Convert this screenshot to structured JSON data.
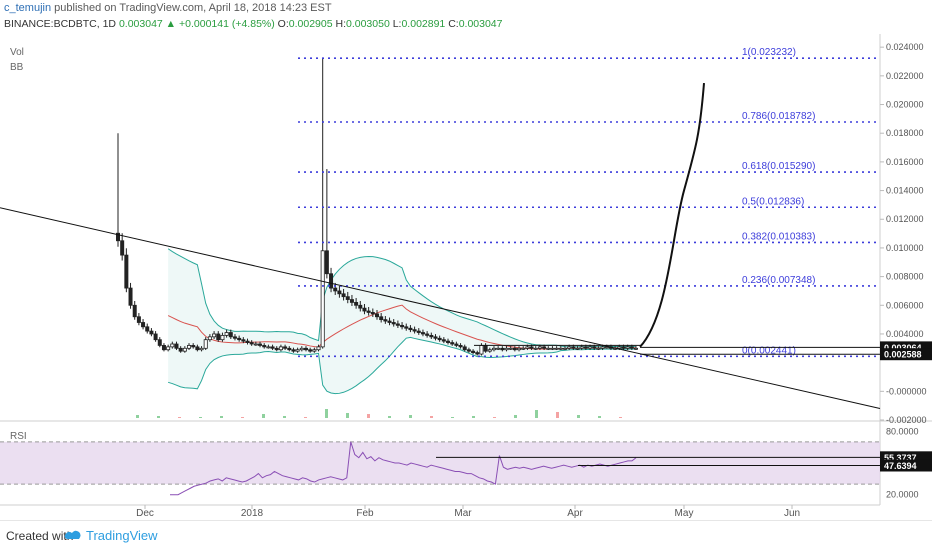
{
  "header": {
    "author": "c_temujin",
    "published_text": "published on TradingView.com, April 18, 2018 14:23 EST",
    "symbol": "BINANCE:BCDBTC, 1D",
    "last": "0.003047",
    "change_arrow": "▲",
    "change": "+0.000141 (+4.85%)",
    "o_label": "O:",
    "o_value": "0.002905",
    "h_label": "H:",
    "h_value": "0.003050",
    "l_label": "L:",
    "l_value": "0.002891",
    "c_label": "C:",
    "c_value": "0.003047"
  },
  "indicators": {
    "vol": "Vol",
    "bb": "BB",
    "rsi": "RSI"
  },
  "footer": {
    "created_with": "Created with",
    "brand": "TradingView",
    "brand_color": "#2e9ee0"
  },
  "chart_data": {
    "type": "candlestick",
    "symbol": "BINANCE:BCDBTC",
    "timeframe": "1D",
    "x_labels": [
      "Dec",
      "2018",
      "Feb",
      "Mar",
      "Apr",
      "May",
      "Jun"
    ],
    "price_axis": {
      "ticks": [
        "0.024000",
        "0.022000",
        "0.020000",
        "0.018000",
        "0.016000",
        "0.014000",
        "0.012000",
        "0.010000",
        "0.008000",
        "0.006000",
        "0.004000",
        "0.003047",
        "-0.000000",
        "-0.002000"
      ],
      "ylim": [
        -0.002,
        0.0245
      ],
      "highlight_labels": [
        {
          "value": 0.003064,
          "text": "0.003064"
        },
        {
          "value": 0.002588,
          "text": "0.002588"
        }
      ]
    },
    "fibonacci_levels": [
      {
        "ratio": "1",
        "price": 0.023232,
        "label": "1(0.023232)"
      },
      {
        "ratio": "0.786",
        "price": 0.018782,
        "label": "0.786(0.018782)"
      },
      {
        "ratio": "0.618",
        "price": 0.01529,
        "label": "0.618(0.015290)"
      },
      {
        "ratio": "0.5",
        "price": 0.012836,
        "label": "0.5(0.012836)"
      },
      {
        "ratio": "0.382",
        "price": 0.010383,
        "label": "0.382(0.010383)"
      },
      {
        "ratio": "0.236",
        "price": 0.007348,
        "label": "0.236(0.007348)"
      },
      {
        "ratio": "0",
        "price": 0.002441,
        "label": "0(0.002441)"
      }
    ],
    "candles_close": [
      0.0105,
      0.0095,
      0.0072,
      0.006,
      0.0052,
      0.0048,
      0.0045,
      0.0042,
      0.004,
      0.0036,
      0.0032,
      0.0029,
      0.0031,
      0.0033,
      0.003,
      0.0028,
      0.003,
      0.0032,
      0.0031,
      0.0029,
      0.003,
      0.0036,
      0.0038,
      0.004,
      0.0036,
      0.0039,
      0.0041,
      0.0038,
      0.0037,
      0.0036,
      0.0035,
      0.0034,
      0.0033,
      0.0033,
      0.0032,
      0.0031,
      0.0031,
      0.003,
      0.0029,
      0.0031,
      0.003,
      0.0029,
      0.0028,
      0.0029,
      0.003,
      0.0029,
      0.0028,
      0.0029,
      0.0031,
      0.0098,
      0.0082,
      0.0072,
      0.007,
      0.0068,
      0.0066,
      0.0064,
      0.0062,
      0.006,
      0.0058,
      0.0056,
      0.0055,
      0.0054,
      0.0052,
      0.005,
      0.0049,
      0.0048,
      0.0047,
      0.0046,
      0.0045,
      0.0044,
      0.0043,
      0.0042,
      0.0041,
      0.004,
      0.0039,
      0.0038,
      0.0037,
      0.0036,
      0.0035,
      0.0034,
      0.0033,
      0.0032,
      0.0031,
      0.0029,
      0.0028,
      0.0027,
      0.0026,
      0.0032,
      0.0028,
      0.0029,
      0.003,
      0.003,
      0.0029,
      0.003,
      0.003,
      0.0029,
      0.003,
      0.003,
      0.0031,
      0.003,
      0.003,
      0.0031,
      0.003,
      0.003,
      0.003,
      0.003,
      0.003,
      0.003,
      0.0031,
      0.003,
      0.003,
      0.0031,
      0.003,
      0.0031,
      0.003,
      0.003,
      0.0031,
      0.0031,
      0.003,
      0.003,
      0.0031,
      0.003,
      0.0031,
      0.003,
      0.003
    ],
    "projection_target": 0.0215,
    "rsi": {
      "axis_ticks": [
        "80.0000",
        "20.0000"
      ],
      "labels": [
        {
          "value": 55.3737,
          "text": "55.3737"
        },
        {
          "value": 47.6394,
          "text": "47.6394"
        }
      ],
      "band": [
        30,
        70
      ],
      "ylim": [
        15,
        85
      ],
      "values": [
        20,
        20,
        20,
        22,
        24,
        26,
        28,
        29,
        30,
        31,
        33,
        34,
        35,
        33,
        36,
        35,
        34,
        33,
        32,
        33,
        35,
        37,
        40,
        36,
        38,
        39,
        42,
        40,
        38,
        37,
        36,
        35,
        34,
        36,
        35,
        33,
        32,
        34,
        35,
        36,
        37,
        36,
        35,
        34,
        36,
        70,
        58,
        55,
        60,
        54,
        56,
        52,
        55,
        53,
        52,
        51,
        50,
        50,
        49,
        48,
        50,
        49,
        48,
        47,
        46,
        48,
        47,
        46,
        45,
        44,
        43,
        42,
        42,
        41,
        40,
        40,
        38,
        36,
        35,
        33,
        32,
        30,
        57,
        46,
        44,
        45,
        46,
        45,
        46,
        45,
        44,
        45,
        46,
        47,
        46,
        45,
        46,
        47,
        48,
        47,
        46,
        47,
        48,
        46,
        48,
        47,
        48,
        49,
        48,
        47,
        48,
        49,
        50,
        51,
        52,
        52,
        55
      ]
    }
  }
}
